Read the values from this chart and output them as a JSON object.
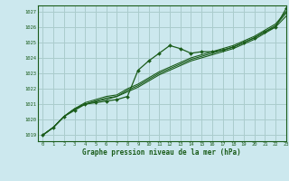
{
  "title": "Graphe pression niveau de la mer (hPa)",
  "bg_color": "#cce8ee",
  "grid_color": "#aacccc",
  "line_color": "#1a5c1a",
  "xlim": [
    -0.5,
    23
  ],
  "ylim": [
    1018.6,
    1027.4
  ],
  "yticks": [
    1019,
    1020,
    1021,
    1022,
    1023,
    1024,
    1025,
    1026,
    1027
  ],
  "xticks": [
    0,
    1,
    2,
    3,
    4,
    5,
    6,
    7,
    8,
    9,
    10,
    11,
    12,
    13,
    14,
    15,
    16,
    17,
    18,
    19,
    20,
    21,
    22,
    23
  ],
  "series_marked": [
    1019.0,
    1019.5,
    1020.2,
    1020.6,
    1021.0,
    1021.1,
    1021.2,
    1021.3,
    1021.5,
    1023.2,
    1023.8,
    1024.3,
    1024.8,
    1024.6,
    1024.3,
    1024.4,
    1024.4,
    1024.5,
    1024.7,
    1025.0,
    1025.3,
    1025.7,
    1026.0,
    1027.2
  ],
  "series_lines": [
    [
      1019.0,
      1019.5,
      1020.2,
      1020.7,
      1021.0,
      1021.2,
      1021.3,
      1021.5,
      1021.8,
      1022.1,
      1022.5,
      1022.9,
      1023.2,
      1023.5,
      1023.8,
      1024.0,
      1024.2,
      1024.4,
      1024.6,
      1024.9,
      1025.2,
      1025.6,
      1026.0,
      1026.7
    ],
    [
      1019.0,
      1019.5,
      1020.2,
      1020.7,
      1021.0,
      1021.2,
      1021.4,
      1021.5,
      1021.9,
      1022.2,
      1022.6,
      1023.0,
      1023.3,
      1023.6,
      1023.9,
      1024.1,
      1024.3,
      1024.5,
      1024.7,
      1025.0,
      1025.3,
      1025.7,
      1026.1,
      1026.9
    ],
    [
      1019.0,
      1019.5,
      1020.2,
      1020.7,
      1021.1,
      1021.3,
      1021.5,
      1021.6,
      1022.0,
      1022.3,
      1022.7,
      1023.1,
      1023.4,
      1023.7,
      1024.0,
      1024.2,
      1024.4,
      1024.6,
      1024.8,
      1025.1,
      1025.4,
      1025.8,
      1026.2,
      1027.0
    ]
  ]
}
